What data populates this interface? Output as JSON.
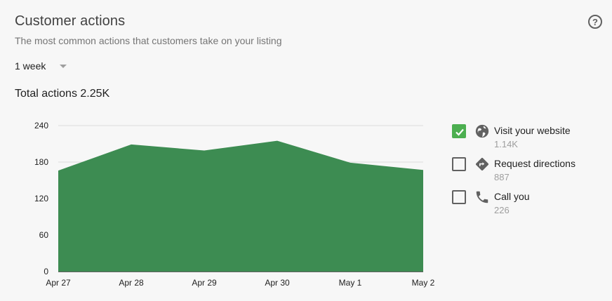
{
  "header": {
    "title": "Customer actions",
    "subtitle": "The most common actions that customers take on your listing",
    "help_glyph": "?"
  },
  "period": {
    "selected": "1 week"
  },
  "total_actions": "Total actions 2.25K",
  "legend": {
    "items": [
      {
        "label": "Visit your website",
        "value": "1.14K",
        "checked": true,
        "icon": "globe-icon"
      },
      {
        "label": "Request directions",
        "value": "887",
        "checked": false,
        "icon": "directions-icon"
      },
      {
        "label": "Call you",
        "value": "226",
        "checked": false,
        "icon": "phone-icon"
      }
    ]
  },
  "colors": {
    "area_fill": "#3d8c52",
    "grid": "#dddddd",
    "checkbox_checked": "#4caf50"
  },
  "chart_data": {
    "type": "area",
    "x": [
      "Apr 27",
      "Apr 28",
      "Apr 29",
      "Apr 30",
      "May 1",
      "May 2"
    ],
    "series": [
      {
        "name": "Visit your website",
        "values": [
          166,
          209,
          199,
          215,
          179,
          167
        ]
      }
    ],
    "y_ticks": [
      0,
      60,
      120,
      180,
      240
    ],
    "ylim": [
      0,
      240
    ],
    "grid": true
  }
}
